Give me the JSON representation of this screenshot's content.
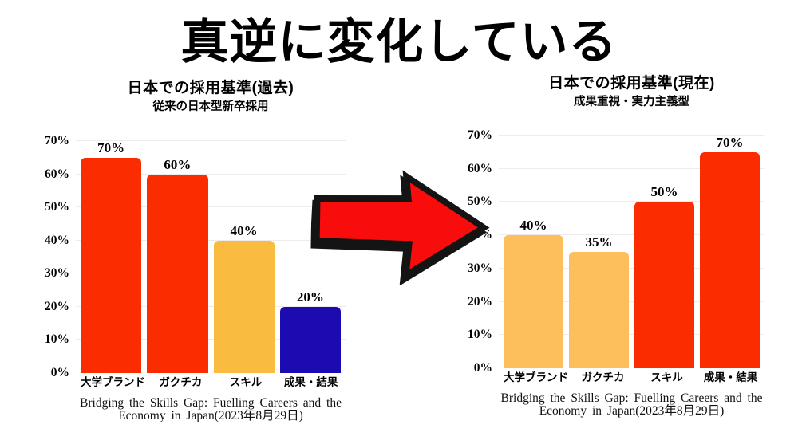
{
  "page": {
    "title": "真逆に変化している",
    "background": "#FFFFFF"
  },
  "arrow": {
    "name": "red-right-arrow",
    "fill": "#F80C0C",
    "outline": "#141414"
  },
  "chart_data": [
    {
      "type": "bar",
      "position": "left",
      "title": "日本での採用基準(過去)",
      "subtitle": "従来の日本型新卒採用",
      "categories": [
        "大学ブランド",
        "ガクチカ",
        "スキル",
        "成果・結果"
      ],
      "values": [
        70,
        60,
        40,
        20
      ],
      "data_labels": [
        "70%",
        "60%",
        "40%",
        "20%"
      ],
      "bar_colors": [
        "#FB2D00",
        "#FB2D00",
        "#F9BC41",
        "#1C0BB0"
      ],
      "xlabel": "",
      "ylabel": "",
      "ylim": [
        0,
        70
      ],
      "yticks": [
        0,
        10,
        20,
        30,
        40,
        50,
        60,
        70
      ],
      "ytick_labels": [
        "0%",
        "10%",
        "20%",
        "30%",
        "40%",
        "50%",
        "60%",
        "70%"
      ],
      "grid": true,
      "legend": false,
      "source_lines": [
        "Bridging the Skills Gap: Fuelling Careers and the",
        "Economy in Japan(2023年8月29日)"
      ]
    },
    {
      "type": "bar",
      "position": "right",
      "title": "日本での採用基準(現在)",
      "subtitle": "成果重視・実力主義型",
      "categories": [
        "大学ブランド",
        "ガクチカ",
        "スキル",
        "成果・結果"
      ],
      "values": [
        40,
        35,
        50,
        70
      ],
      "data_labels": [
        "40%",
        "35%",
        "50%",
        "70%"
      ],
      "bar_colors": [
        "#FCBF5B",
        "#FCBF5B",
        "#FB2D00",
        "#FB2D00"
      ],
      "xlabel": "",
      "ylabel": "",
      "ylim": [
        0,
        70
      ],
      "yticks": [
        0,
        10,
        20,
        30,
        40,
        50,
        60,
        70
      ],
      "ytick_labels": [
        "0%",
        "10%",
        "20%",
        "30%",
        "40%",
        "50%",
        "60%",
        "70%"
      ],
      "grid": true,
      "legend": false,
      "source_lines": [
        "Bridging the Skills Gap: Fuelling Careers and the",
        "Economy in Japan(2023年8月29日)"
      ]
    }
  ]
}
